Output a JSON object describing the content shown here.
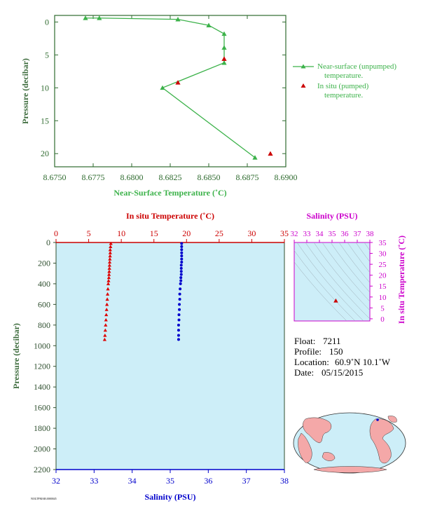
{
  "chart_data": [
    {
      "type": "line",
      "xlabel": "Near-Surface Temperature (˚C)",
      "ylabel": "Pressure (decibar)",
      "xlim": [
        8.675,
        8.69
      ],
      "ylim": [
        22,
        -1
      ],
      "x_ticks": [
        "8.6750",
        "8.6775",
        "8.6800",
        "8.6825",
        "8.6850",
        "8.6875",
        "8.6900"
      ],
      "y_ticks": [
        "0",
        "5",
        "10",
        "15",
        "20"
      ],
      "series": [
        {
          "name": "Near-surface (unpumped) temperature.",
          "color": "#3cb24a",
          "marker": "triangle",
          "points": [
            {
              "x": 8.677,
              "y": -0.6
            },
            {
              "x": 8.6779,
              "y": -0.6
            },
            {
              "x": 8.683,
              "y": -0.4
            },
            {
              "x": 8.685,
              "y": 0.5
            },
            {
              "x": 8.686,
              "y": 1.8
            },
            {
              "x": 8.686,
              "y": 3.9
            },
            {
              "x": 8.686,
              "y": 6.2
            },
            {
              "x": 8.682,
              "y": 10.0
            },
            {
              "x": 8.688,
              "y": 20.6
            }
          ]
        },
        {
          "name": "In situ (pumped) temperature.",
          "color": "#cc0000",
          "marker": "triangle",
          "connected": false,
          "points": [
            {
              "x": 8.686,
              "y": 5.6
            },
            {
              "x": 8.683,
              "y": 9.2
            },
            {
              "x": 8.689,
              "y": 20.0
            }
          ]
        }
      ],
      "legend": [
        {
          "line1": "Near-surface (unpumped)",
          "line2": "temperature."
        },
        {
          "line1": "In situ (pumped)",
          "line2": "temperature."
        }
      ]
    },
    {
      "type": "scatter",
      "top_axis_label": "In situ Temperature (˚C)",
      "bottom_axis_label": "Salinity (PSU)",
      "ylabel": "Pressure (decibar)",
      "top_xlim": [
        0,
        35
      ],
      "bottom_xlim": [
        32,
        38
      ],
      "ylim": [
        2200,
        0
      ],
      "top_ticks": [
        "0",
        "5",
        "10",
        "15",
        "20",
        "25",
        "30",
        "35"
      ],
      "bottom_ticks": [
        "32",
        "33",
        "34",
        "35",
        "36",
        "37",
        "38"
      ],
      "y_ticks": [
        "0",
        "200",
        "400",
        "600",
        "800",
        "1000",
        "1200",
        "1400",
        "1600",
        "1800",
        "2000",
        "2200"
      ],
      "background": "#cdeef8",
      "series": [
        {
          "name": "In situ Temperature",
          "axis": "top",
          "color": "#dd0000",
          "marker": "triangle",
          "points": [
            {
              "v": 8.4,
              "p": 10
            },
            {
              "v": 8.35,
              "p": 40
            },
            {
              "v": 8.3,
              "p": 70
            },
            {
              "v": 8.3,
              "p": 100
            },
            {
              "v": 8.28,
              "p": 130
            },
            {
              "v": 8.25,
              "p": 160
            },
            {
              "v": 8.22,
              "p": 190
            },
            {
              "v": 8.2,
              "p": 220
            },
            {
              "v": 8.18,
              "p": 250
            },
            {
              "v": 8.15,
              "p": 280
            },
            {
              "v": 8.12,
              "p": 310
            },
            {
              "v": 8.1,
              "p": 340
            },
            {
              "v": 8.05,
              "p": 370
            },
            {
              "v": 8.0,
              "p": 400
            },
            {
              "v": 7.95,
              "p": 450
            },
            {
              "v": 7.9,
              "p": 500
            },
            {
              "v": 7.85,
              "p": 550
            },
            {
              "v": 7.8,
              "p": 600
            },
            {
              "v": 7.75,
              "p": 650
            },
            {
              "v": 7.7,
              "p": 700
            },
            {
              "v": 7.65,
              "p": 750
            },
            {
              "v": 7.6,
              "p": 800
            },
            {
              "v": 7.55,
              "p": 850
            },
            {
              "v": 7.5,
              "p": 900
            },
            {
              "v": 7.45,
              "p": 940
            }
          ]
        },
        {
          "name": "Salinity",
          "axis": "bottom",
          "color": "#0000cc",
          "marker": "circle",
          "points": [
            {
              "v": 35.3,
              "p": 10
            },
            {
              "v": 35.3,
              "p": 40
            },
            {
              "v": 35.3,
              "p": 70
            },
            {
              "v": 35.3,
              "p": 100
            },
            {
              "v": 35.3,
              "p": 130
            },
            {
              "v": 35.3,
              "p": 160
            },
            {
              "v": 35.3,
              "p": 190
            },
            {
              "v": 35.29,
              "p": 220
            },
            {
              "v": 35.29,
              "p": 250
            },
            {
              "v": 35.29,
              "p": 280
            },
            {
              "v": 35.29,
              "p": 310
            },
            {
              "v": 35.28,
              "p": 340
            },
            {
              "v": 35.28,
              "p": 370
            },
            {
              "v": 35.27,
              "p": 400
            },
            {
              "v": 35.26,
              "p": 450
            },
            {
              "v": 35.25,
              "p": 500
            },
            {
              "v": 35.25,
              "p": 550
            },
            {
              "v": 35.24,
              "p": 600
            },
            {
              "v": 35.24,
              "p": 650
            },
            {
              "v": 35.23,
              "p": 700
            },
            {
              "v": 35.23,
              "p": 750
            },
            {
              "v": 35.22,
              "p": 800
            },
            {
              "v": 35.22,
              "p": 850
            },
            {
              "v": 35.22,
              "p": 900
            },
            {
              "v": 35.22,
              "p": 940
            }
          ]
        }
      ]
    },
    {
      "type": "scatter",
      "top_axis_label": "Salinity (PSU)",
      "right_axis_label": "In situ Temperature (˚C)",
      "xlim": [
        32,
        38
      ],
      "ylim": [
        -1,
        35
      ],
      "x_ticks": [
        "32",
        "33",
        "34",
        "35",
        "36",
        "37",
        "38"
      ],
      "y_ticks": [
        "0",
        "5",
        "10",
        "15",
        "20",
        "25",
        "30",
        "35"
      ],
      "points": [
        {
          "x": 35.3,
          "y": 8.3
        }
      ],
      "point_color": "#cc0000",
      "background": "#cdeef8"
    }
  ],
  "info": {
    "float_label": "Float:",
    "float": "7211",
    "profile_label": "Profile:",
    "profile": "150",
    "location_label": "Location:",
    "location": "60.9˚N  10.1˚W",
    "date_label": "Date:",
    "date": "05/15/2015"
  },
  "footer_code": "NOLTPMAB.0000045",
  "colors": {
    "green": "#3cb24a",
    "red": "#cc0000",
    "blue": "#0000cc",
    "magenta": "#cc00cc",
    "ocean": "#cdeef8"
  }
}
